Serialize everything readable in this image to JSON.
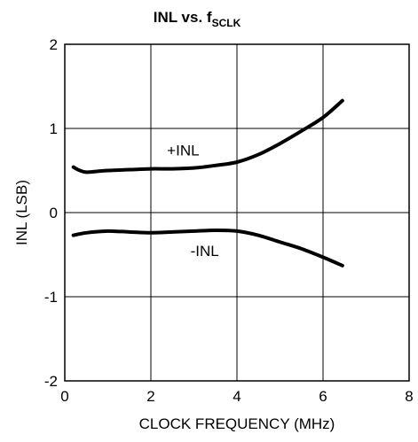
{
  "chart_data": {
    "type": "line",
    "title": "INL vs. f",
    "title_subscript": "SCLK",
    "xlabel": "CLOCK FREQUENCY (MHz)",
    "ylabel": "INL (LSB)",
    "xlim": [
      0,
      8
    ],
    "ylim": [
      -2,
      2
    ],
    "xticks": [
      0,
      2,
      4,
      6,
      8
    ],
    "yticks": [
      -2,
      -1,
      0,
      1,
      2
    ],
    "xtick_labels": [
      "0",
      "2",
      "4",
      "6",
      "8"
    ],
    "ytick_labels": [
      "-2",
      "-1",
      "0",
      "1",
      "2"
    ],
    "grid": true,
    "series": [
      {
        "name": "+INL",
        "color": "#000000",
        "label_at": [
          2.75,
          0.74
        ],
        "points": [
          [
            0.2,
            0.54
          ],
          [
            0.35,
            0.5
          ],
          [
            0.5,
            0.48
          ],
          [
            0.75,
            0.49
          ],
          [
            1.0,
            0.5
          ],
          [
            1.5,
            0.51
          ],
          [
            2.0,
            0.52
          ],
          [
            2.5,
            0.52
          ],
          [
            3.0,
            0.53
          ],
          [
            3.5,
            0.56
          ],
          [
            4.0,
            0.6
          ],
          [
            4.5,
            0.69
          ],
          [
            5.0,
            0.82
          ],
          [
            5.5,
            0.97
          ],
          [
            6.0,
            1.13
          ],
          [
            6.45,
            1.33
          ]
        ]
      },
      {
        "name": "-INL",
        "color": "#000000",
        "label_at": [
          3.25,
          -0.45
        ],
        "points": [
          [
            0.2,
            -0.27
          ],
          [
            0.5,
            -0.24
          ],
          [
            1.0,
            -0.22
          ],
          [
            1.5,
            -0.23
          ],
          [
            2.0,
            -0.24
          ],
          [
            2.5,
            -0.23
          ],
          [
            3.0,
            -0.22
          ],
          [
            3.5,
            -0.21
          ],
          [
            4.0,
            -0.22
          ],
          [
            4.5,
            -0.27
          ],
          [
            5.0,
            -0.35
          ],
          [
            5.5,
            -0.43
          ],
          [
            6.0,
            -0.53
          ],
          [
            6.45,
            -0.63
          ]
        ]
      }
    ]
  }
}
